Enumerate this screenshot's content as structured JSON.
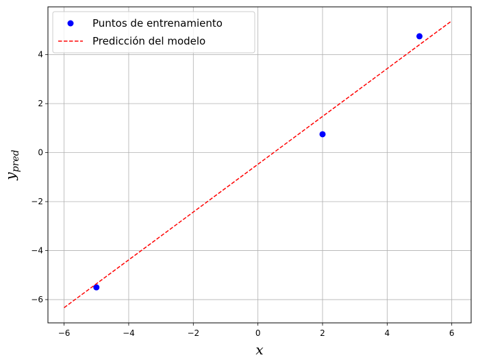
{
  "chart_data": {
    "type": "scatter",
    "title": "",
    "xlabel": "x",
    "ylabel_base": "y",
    "ylabel_sub": "pred",
    "xlim": [
      -6.5,
      6.6
    ],
    "ylim": [
      -6.95,
      5.95
    ],
    "xticks": [
      -6,
      -4,
      -2,
      0,
      2,
      4,
      6
    ],
    "yticks": [
      -6,
      -4,
      -2,
      0,
      2,
      4
    ],
    "grid": true,
    "legend_position": "top-left",
    "series": [
      {
        "name": "Puntos de entrenamiento",
        "kind": "scatter",
        "color": "#0000ff",
        "points": [
          {
            "x": -5,
            "y": -5.5
          },
          {
            "x": 2,
            "y": 0.75
          },
          {
            "x": 5,
            "y": 4.75
          }
        ]
      },
      {
        "name": "Predicción del modelo",
        "kind": "line",
        "style": "dashed",
        "color": "#ff0000",
        "points": [
          {
            "x": -6,
            "y": -6.33
          },
          {
            "x": 6,
            "y": 5.38
          }
        ]
      }
    ]
  }
}
